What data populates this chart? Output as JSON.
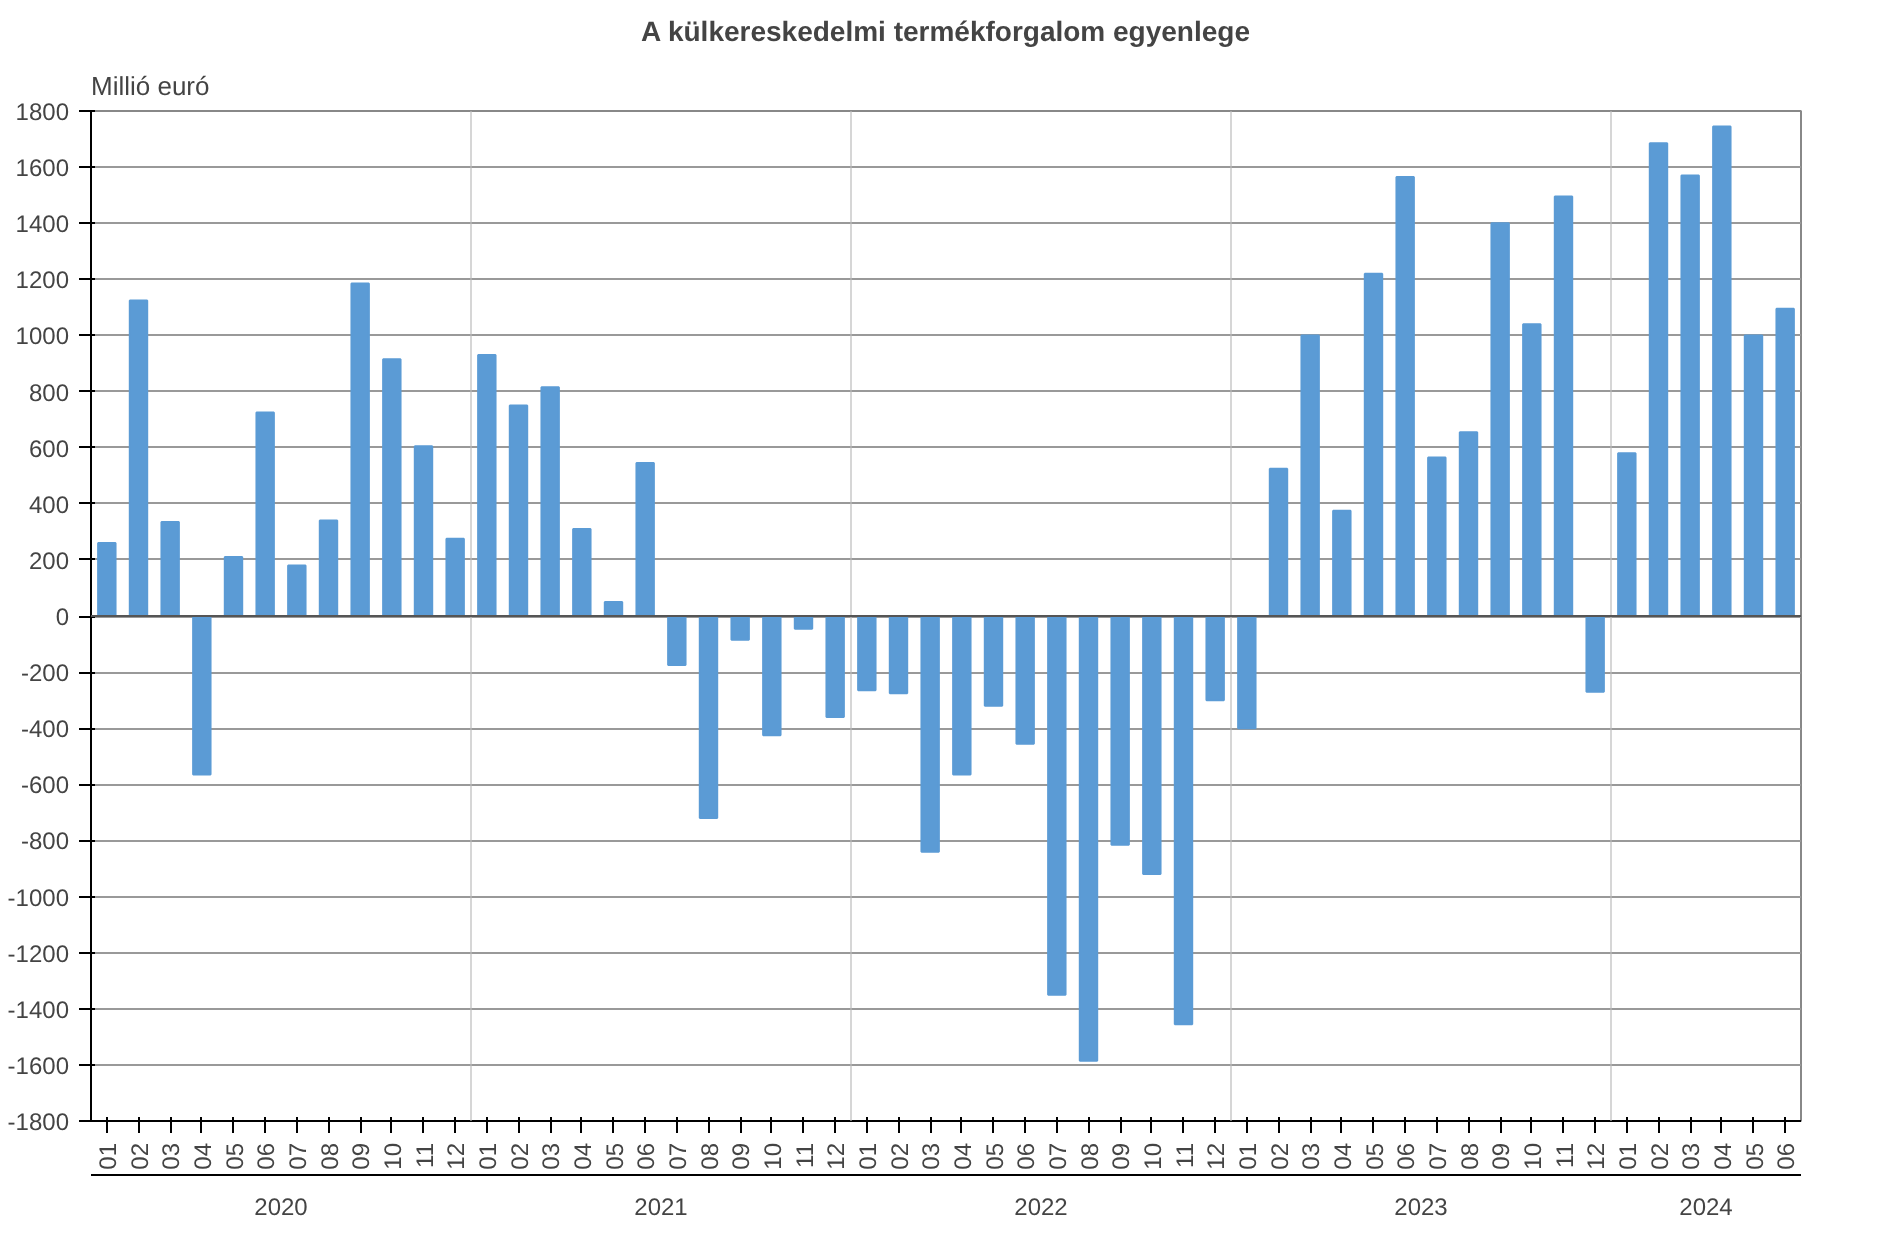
{
  "chart_data": {
    "type": "bar",
    "title": "A külkereskedelmi termékforgalom egyenlege",
    "ylabel": "Millió euró",
    "categories": [
      "01",
      "02",
      "03",
      "04",
      "05",
      "06",
      "07",
      "08",
      "09",
      "10",
      "11",
      "12",
      "01",
      "02",
      "03",
      "04",
      "05",
      "06",
      "07",
      "08",
      "09",
      "10",
      "11",
      "12",
      "01",
      "02",
      "03",
      "04",
      "05",
      "06",
      "07",
      "08",
      "09",
      "10",
      "11",
      "12",
      "01",
      "02",
      "03",
      "04",
      "05",
      "06",
      "07",
      "08",
      "09",
      "10",
      "11",
      "12",
      "01",
      "02",
      "03",
      "04",
      "05",
      "06"
    ],
    "annotations": [
      "2020",
      "2021",
      "2022",
      "2023",
      "2024"
    ],
    "values": [
      260,
      1125,
      335,
      -565,
      210,
      725,
      180,
      340,
      1185,
      915,
      605,
      275,
      930,
      750,
      815,
      310,
      50,
      545,
      -175,
      -720,
      -85,
      -425,
      -45,
      -360,
      -265,
      -275,
      -840,
      -565,
      -320,
      -455,
      -1350,
      -1585,
      -815,
      -920,
      -1455,
      -300,
      -400,
      525,
      1000,
      375,
      1220,
      1565,
      565,
      655,
      1400,
      1040,
      1495,
      -270,
      580,
      1685,
      1570,
      1745,
      1000,
      1095
    ],
    "color": "#5b9bd5",
    "ylim": [
      -1800,
      1800
    ],
    "yticks": [
      -1800,
      -1600,
      -1400,
      -1200,
      -1000,
      -800,
      -600,
      -400,
      -200,
      0,
      200,
      400,
      600,
      800,
      1000,
      1200,
      1400,
      1600,
      1800
    ],
    "grid": "y"
  }
}
